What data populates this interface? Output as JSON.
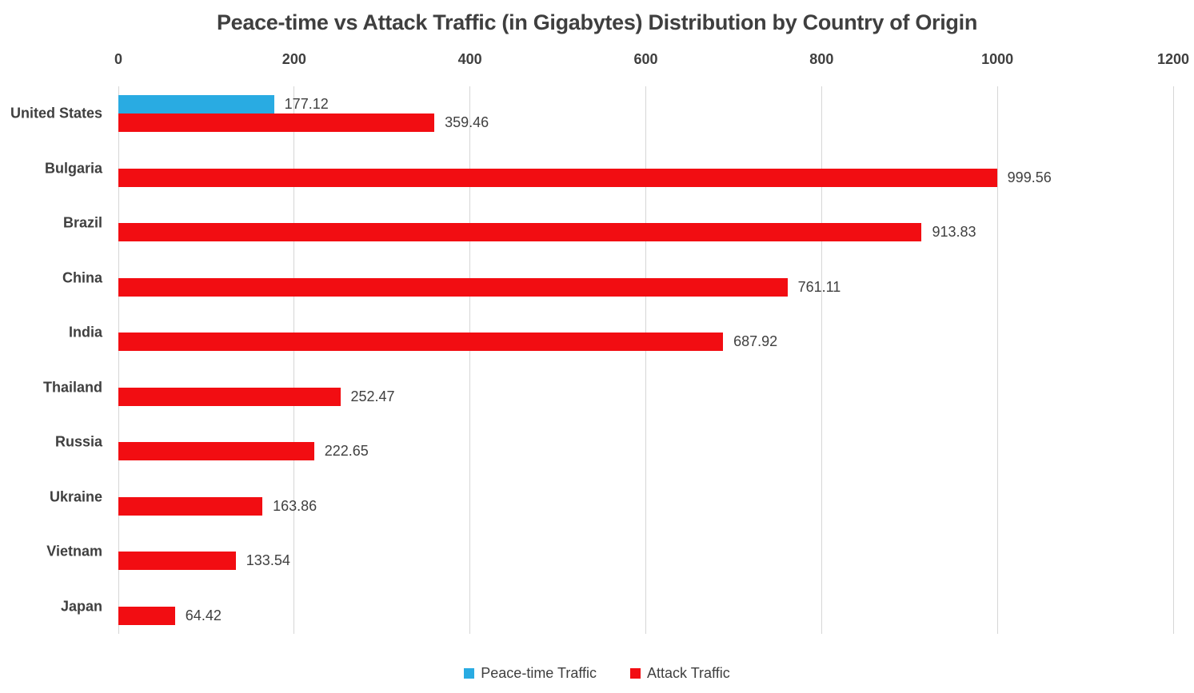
{
  "chart_data": {
    "type": "bar",
    "orientation": "horizontal",
    "title": "Peace-time vs Attack Traffic (in Gigabytes) Distribution by Country of Origin",
    "categories": [
      "United States",
      "Bulgaria",
      "Brazil",
      "China",
      "India",
      "Thailand",
      "Russia",
      "Ukraine",
      "Vietnam",
      "Japan"
    ],
    "series": [
      {
        "name": "Peace-time Traffic",
        "color": "#29ABE2",
        "values": [
          177.12,
          null,
          null,
          null,
          null,
          null,
          null,
          null,
          null,
          null
        ]
      },
      {
        "name": "Attack Traffic",
        "color": "#F20D12",
        "values": [
          359.46,
          999.56,
          913.83,
          761.11,
          687.92,
          252.47,
          222.65,
          163.86,
          133.54,
          64.42
        ]
      }
    ],
    "x_axis": {
      "min": 0,
      "max": 1200,
      "ticks": [
        0,
        200,
        400,
        600,
        800,
        1000,
        1200
      ],
      "position": "top"
    },
    "ylabel": "",
    "xlabel": "",
    "grid": "vertical",
    "legend_position": "bottom",
    "value_label_decimals": 2
  },
  "colors": {
    "text": "#3F3F3F",
    "value_text": "#404040",
    "gridline": "#D6D6D6",
    "background": "#FFFFFF"
  }
}
